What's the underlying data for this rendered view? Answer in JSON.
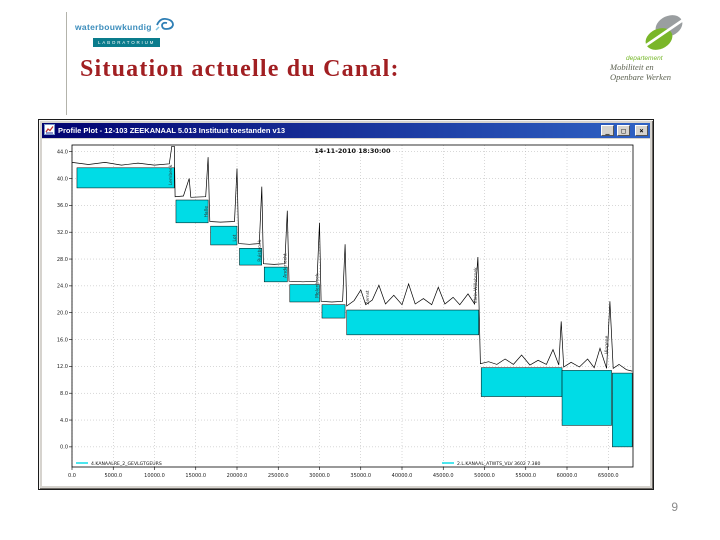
{
  "slide": {
    "title": "Situation actuelle du Canal:",
    "title_color": "#a11f22",
    "page_number": "9"
  },
  "logo_left": {
    "name": "waterbouwkundig",
    "sub": "LABORATORIUM"
  },
  "logo_right": {
    "line1": "departement",
    "line2": "Mobiliteit en",
    "line3": "Openbare Werken"
  },
  "window": {
    "title": "Profile Plot - 12-103 ZEEKANAAL 5.013 Instituut toestanden v13",
    "minimize": "_",
    "maximize": "□",
    "close": "×"
  },
  "chart_data": {
    "type": "area",
    "title": "14-11-2010 18:30:00",
    "xlabel": "",
    "ylabel": "",
    "xlim": [
      0,
      68000
    ],
    "ylim": [
      -3,
      45
    ],
    "grid": true,
    "water_color": "#00dce6",
    "x_ticks": [
      0,
      5000,
      10000,
      15000,
      20000,
      25000,
      30000,
      35000,
      40000,
      45000,
      50000,
      55000,
      60000,
      65000
    ],
    "x_tick_labels": [
      "0.0",
      "5000.0",
      "10000.0",
      "15000.0",
      "20000.0",
      "25000.0",
      "30000.0",
      "35000.0",
      "40000.0",
      "45000.0",
      "50000.0",
      "55000.0",
      "60000.0",
      "65000.0"
    ],
    "y_ticks": [
      44,
      40,
      36,
      32,
      28,
      24,
      20,
      16,
      12,
      8,
      4,
      0
    ],
    "y_tick_labels": [
      "44.0",
      "40.0",
      "36.0",
      "32.0",
      "28.0",
      "24.0",
      "20.0",
      "16.0",
      "12.0",
      "8.0",
      "4.0",
      "0.0"
    ],
    "pools": [
      {
        "x0": 600,
        "x1": 12400,
        "top": 41.6,
        "bottom": 38.6
      },
      {
        "x0": 12600,
        "x1": 16500,
        "top": 36.8,
        "bottom": 33.4
      },
      {
        "x0": 16800,
        "x1": 20000,
        "top": 32.9,
        "bottom": 30.1
      },
      {
        "x0": 20300,
        "x1": 23000,
        "top": 29.6,
        "bottom": 27.1
      },
      {
        "x0": 23300,
        "x1": 26100,
        "top": 26.8,
        "bottom": 24.6
      },
      {
        "x0": 26400,
        "x1": 30000,
        "top": 24.2,
        "bottom": 21.6
      },
      {
        "x0": 30300,
        "x1": 33100,
        "top": 21.2,
        "bottom": 19.2
      },
      {
        "x0": 33300,
        "x1": 49300,
        "top": 20.4,
        "bottom": 16.7
      },
      {
        "x0": 49600,
        "x1": 59400,
        "top": 11.8,
        "bottom": 7.5
      },
      {
        "x0": 59400,
        "x1": 65400,
        "top": 11.4,
        "bottom": 3.2
      },
      {
        "x0": 65500,
        "x1": 67900,
        "top": 11.0,
        "bottom": 0.0
      }
    ],
    "terrain": [
      [
        0,
        42.4
      ],
      [
        2000,
        42.1
      ],
      [
        4000,
        42.4
      ],
      [
        6000,
        42.0
      ],
      [
        8000,
        42.3
      ],
      [
        10000,
        42.0
      ],
      [
        11800,
        42.2
      ],
      [
        12100,
        44.8
      ],
      [
        12400,
        44.8
      ],
      [
        12500,
        37.3
      ],
      [
        13500,
        37.4
      ],
      [
        14200,
        40.0
      ],
      [
        14400,
        37.2
      ],
      [
        16200,
        37.3
      ],
      [
        16500,
        43.2
      ],
      [
        16700,
        33.6
      ],
      [
        18000,
        33.5
      ],
      [
        19700,
        33.6
      ],
      [
        20000,
        41.5
      ],
      [
        20200,
        30.3
      ],
      [
        21500,
        30.2
      ],
      [
        22700,
        30.3
      ],
      [
        23000,
        38.8
      ],
      [
        23200,
        27.3
      ],
      [
        24500,
        27.2
      ],
      [
        25800,
        27.3
      ],
      [
        26100,
        35.2
      ],
      [
        26300,
        24.7
      ],
      [
        28000,
        24.6
      ],
      [
        29700,
        24.7
      ],
      [
        30000,
        33.4
      ],
      [
        30200,
        21.7
      ],
      [
        31500,
        21.6
      ],
      [
        32800,
        21.7
      ],
      [
        33100,
        30.2
      ],
      [
        33300,
        21.0
      ],
      [
        34200,
        21.8
      ],
      [
        35000,
        23.4
      ],
      [
        35600,
        21.2
      ],
      [
        36400,
        21.9
      ],
      [
        37200,
        24.1
      ],
      [
        38000,
        21.3
      ],
      [
        39000,
        22.6
      ],
      [
        40000,
        21.2
      ],
      [
        40800,
        24.3
      ],
      [
        41600,
        21.3
      ],
      [
        42600,
        22.1
      ],
      [
        43600,
        21.2
      ],
      [
        44400,
        23.8
      ],
      [
        45200,
        21.3
      ],
      [
        46200,
        22.3
      ],
      [
        47000,
        21.2
      ],
      [
        48000,
        22.8
      ],
      [
        48800,
        21.3
      ],
      [
        49200,
        28.3
      ],
      [
        49500,
        12.4
      ],
      [
        50500,
        12.7
      ],
      [
        51500,
        12.3
      ],
      [
        52500,
        13.1
      ],
      [
        53500,
        12.3
      ],
      [
        54500,
        13.7
      ],
      [
        55500,
        12.2
      ],
      [
        56500,
        12.9
      ],
      [
        57500,
        12.3
      ],
      [
        58300,
        14.5
      ],
      [
        59000,
        12.2
      ],
      [
        59300,
        18.7
      ],
      [
        59600,
        11.9
      ],
      [
        60500,
        12.6
      ],
      [
        61500,
        11.9
      ],
      [
        62500,
        13.1
      ],
      [
        63300,
        11.8
      ],
      [
        64000,
        14.7
      ],
      [
        64800,
        11.7
      ],
      [
        65200,
        21.7
      ],
      [
        65600,
        11.7
      ],
      [
        66300,
        12.3
      ],
      [
        67200,
        11.5
      ],
      [
        67900,
        11.3
      ]
    ],
    "structures": [
      {
        "x": 12100,
        "label": "Lembeek",
        "y": 39.0
      },
      {
        "x": 16400,
        "label": "Halle",
        "y": 34.2
      },
      {
        "x": 19900,
        "label": "Lot",
        "y": 30.6
      },
      {
        "x": 22900,
        "label": "Ruisbroek",
        "y": 27.6
      },
      {
        "x": 26000,
        "label": "Anderlecht",
        "y": 25.2
      },
      {
        "x": 29900,
        "label": "Molenbeek",
        "y": 22.2
      },
      {
        "x": 36000,
        "label": "Zemst",
        "y": 21.2
      },
      {
        "x": 49100,
        "label": "Klein-Willebroek",
        "y": 21.4
      },
      {
        "x": 65000,
        "label": "Hingene",
        "y": 13.8
      }
    ],
    "legend": [
      {
        "label": "4.KANAALRE_2_GEVLGTGEURS"
      },
      {
        "label": "2.L.KANAAL_ATWTS_VLV 3602 7.380"
      }
    ],
    "legend_position": "bottom-inside"
  }
}
